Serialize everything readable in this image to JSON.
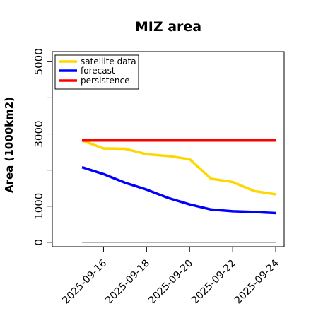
{
  "chart_data": {
    "type": "line",
    "title": "MIZ area",
    "xlabel": "",
    "ylabel": "Area (1000km2)",
    "x": [
      "2025-09-15",
      "2025-09-16",
      "2025-09-17",
      "2025-09-18",
      "2025-09-19",
      "2025-09-20",
      "2025-09-21",
      "2025-09-22",
      "2025-09-23",
      "2025-09-24"
    ],
    "xticks": [
      "2025-09-16",
      "2025-09-18",
      "2025-09-20",
      "2025-09-22",
      "2025-09-24"
    ],
    "xtick_colors": [
      "#228B22",
      "#000000",
      "#000000",
      "#000000",
      "#000000"
    ],
    "yticks": [
      0,
      1000,
      3000,
      5000
    ],
    "ylim": [
      -120,
      5280
    ],
    "grid": false,
    "legend_position": "top-left",
    "series": [
      {
        "name": "satellite data",
        "color": "#FFD700",
        "values": [
          2820,
          2600,
          2590,
          2440,
          2390,
          2300,
          1760,
          1670,
          1420,
          1330
        ]
      },
      {
        "name": "forecast",
        "color": "#0000FF",
        "values": [
          2080,
          1890,
          1650,
          1460,
          1230,
          1050,
          910,
          860,
          840,
          810
        ]
      },
      {
        "name": "persistence",
        "color": "#FF0000",
        "values": [
          2820,
          2820,
          2820,
          2820,
          2820,
          2820,
          2820,
          2820,
          2820,
          2820
        ]
      }
    ],
    "baseline": {
      "value": 0,
      "color": "#888888"
    }
  }
}
